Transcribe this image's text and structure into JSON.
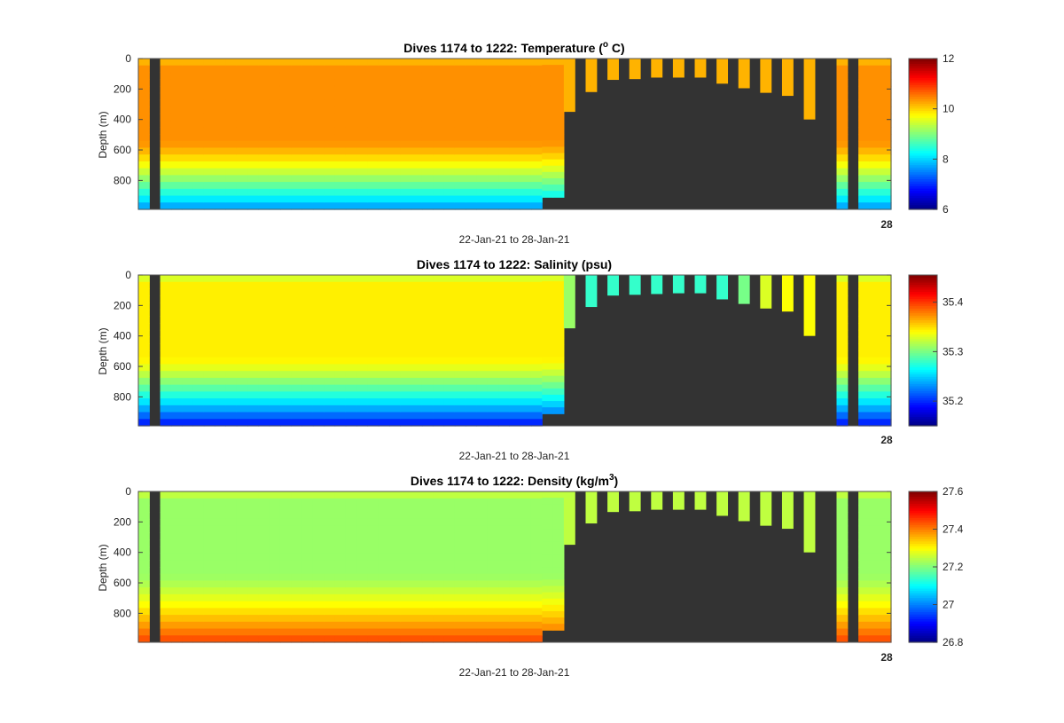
{
  "colormap_name": "jet",
  "background_color": "#333333",
  "charts": {
    "temperature": {
      "title_prefix": "Dives 1174 to 1222: Temperature (",
      "title_sup": "o",
      "title_suffix": " C)"
    },
    "salinity": {
      "title": "Dives 1174 to 1222: Salinity (psu)"
    },
    "density": {
      "title_prefix": "Dives 1174 to 1222: Density (kg/m",
      "title_sup": "3",
      "title_suffix": ")"
    }
  },
  "chart_data": [
    {
      "type": "heatmap",
      "variable": "Temperature",
      "title": "Dives 1174 to 1222: Temperature (o C)",
      "ylabel": "Depth (m)",
      "xlabel": "22-Jan-21 to 28-Jan-21",
      "yticks": [
        "0",
        "200",
        "400",
        "600",
        "800"
      ],
      "xtick_label": "28",
      "ylim": [
        0,
        990
      ],
      "y_reversed": true,
      "colorbar": {
        "min": 6,
        "max": 12,
        "ticks": [
          "6",
          "8",
          "10",
          "12"
        ]
      },
      "surface_value": 10.2,
      "subsurface_value": 10.4,
      "deep_value": 7.6,
      "profile_max_depths": [
        990,
        0,
        990,
        990,
        990,
        990,
        990,
        990,
        990,
        990,
        990,
        990,
        990,
        990,
        990,
        990,
        990,
        990,
        990,
        990,
        990,
        990,
        990,
        990,
        990,
        990,
        990,
        990,
        990,
        990,
        990,
        990,
        990,
        990,
        990,
        990,
        990,
        910,
        910,
        350,
        0,
        220,
        0,
        140,
        0,
        135,
        0,
        125,
        0,
        125,
        0,
        125,
        0,
        165,
        0,
        195,
        0,
        225,
        0,
        245,
        0,
        400,
        0,
        0,
        990,
        0,
        990,
        990,
        990
      ]
    },
    {
      "type": "heatmap",
      "variable": "Salinity",
      "title": "Dives 1174 to 1222: Salinity (psu)",
      "ylabel": "Depth (m)",
      "xlabel": "22-Jan-21 to 28-Jan-21",
      "yticks": [
        "0",
        "200",
        "400",
        "600",
        "800"
      ],
      "xtick_label": "28",
      "ylim": [
        0,
        990
      ],
      "y_reversed": true,
      "colorbar": {
        "min": 35.15,
        "max": 35.455,
        "ticks": [
          "35.2",
          "35.3",
          "35.4"
        ]
      },
      "surface_value": 35.33,
      "subsurface_value": 35.345,
      "deep_value": 35.19,
      "shallow_profile_values": [
        35.31,
        35.28,
        35.28,
        35.28,
        35.28,
        35.28,
        35.28,
        35.28,
        35.3,
        35.33,
        35.34,
        35.34
      ],
      "profile_max_depths": [
        990,
        0,
        990,
        990,
        990,
        990,
        990,
        990,
        990,
        990,
        990,
        990,
        990,
        990,
        990,
        990,
        990,
        990,
        990,
        990,
        990,
        990,
        990,
        990,
        990,
        990,
        990,
        990,
        990,
        990,
        990,
        990,
        990,
        990,
        990,
        990,
        990,
        910,
        910,
        350,
        0,
        210,
        0,
        135,
        0,
        130,
        0,
        125,
        0,
        120,
        0,
        120,
        0,
        160,
        0,
        190,
        0,
        220,
        0,
        240,
        0,
        400,
        0,
        0,
        990,
        0,
        990,
        990,
        990
      ]
    },
    {
      "type": "heatmap",
      "variable": "Density",
      "title": "Dives 1174 to 1222: Density (kg/m3)",
      "ylabel": "Depth (m)",
      "xlabel": "22-Jan-21 to 28-Jan-21",
      "yticks": [
        "0",
        "200",
        "400",
        "600",
        "800"
      ],
      "xtick_label": "28",
      "ylim": [
        0,
        990
      ],
      "y_reversed": true,
      "colorbar": {
        "min": 26.8,
        "max": 27.6,
        "ticks": [
          "26.8",
          "27",
          "27.2",
          "27.4",
          "27.6"
        ]
      },
      "surface_value": 27.25,
      "subsurface_value": 27.22,
      "deep_value": 27.45,
      "profile_max_depths": [
        990,
        0,
        990,
        990,
        990,
        990,
        990,
        990,
        990,
        990,
        990,
        990,
        990,
        990,
        990,
        990,
        990,
        990,
        990,
        990,
        990,
        990,
        990,
        990,
        990,
        990,
        990,
        990,
        990,
        990,
        990,
        990,
        990,
        990,
        990,
        990,
        990,
        910,
        910,
        350,
        0,
        210,
        0,
        135,
        0,
        130,
        0,
        120,
        0,
        120,
        0,
        120,
        0,
        160,
        0,
        195,
        0,
        225,
        0,
        245,
        0,
        400,
        0,
        0,
        990,
        0,
        990,
        990,
        990
      ]
    }
  ]
}
